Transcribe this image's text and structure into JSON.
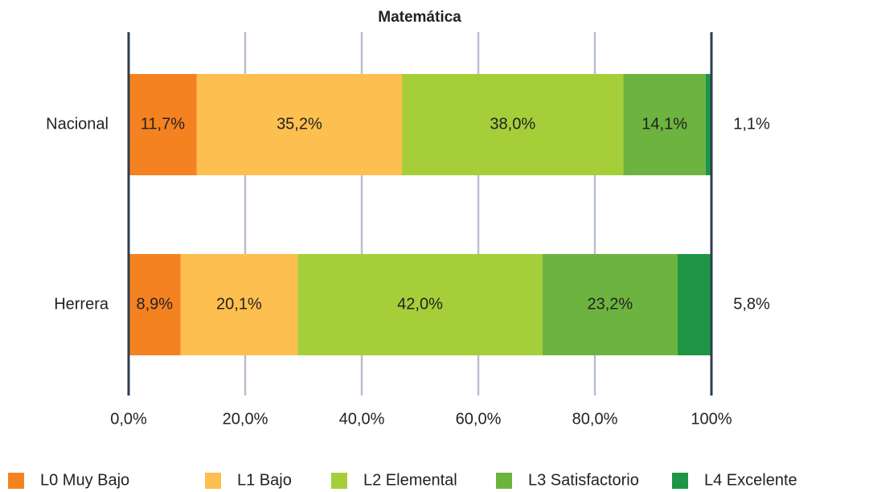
{
  "chart_data": {
    "type": "stacked-bar-horizontal",
    "title": "Matemática",
    "categories": [
      "Nacional",
      "Herrera"
    ],
    "series": [
      {
        "name": "L0 Muy Bajo",
        "color": "#f58220",
        "values": [
          11.7,
          8.9
        ],
        "value_labels": [
          "11,7%",
          "8,9%"
        ]
      },
      {
        "name": "L1 Bajo",
        "color": "#fdbf4f",
        "values": [
          35.2,
          20.1
        ],
        "value_labels": [
          "35,2%",
          "20,1%"
        ]
      },
      {
        "name": "L2 Elemental",
        "color": "#a6ce39",
        "values": [
          38.0,
          42.0
        ],
        "value_labels": [
          "38,0%",
          "42,0%"
        ]
      },
      {
        "name": "L3 Satisfactorio",
        "color": "#6db33f",
        "values": [
          14.1,
          23.2
        ],
        "value_labels": [
          "14,1%",
          "23,2%"
        ]
      },
      {
        "name": "L4 Excelente",
        "color": "#1e9646",
        "values": [
          1.1,
          5.8
        ],
        "value_labels": [
          "1,1%",
          "5,8%"
        ]
      }
    ],
    "xlim": [
      0,
      100
    ],
    "xticks": [
      {
        "value": 0,
        "label": "0,0%"
      },
      {
        "value": 20,
        "label": "20,0%"
      },
      {
        "value": 40,
        "label": "40,0%"
      },
      {
        "value": 60,
        "label": "60,0%"
      },
      {
        "value": 80,
        "label": "80,0%"
      },
      {
        "value": 100,
        "label": "100%"
      }
    ],
    "grid": true
  }
}
